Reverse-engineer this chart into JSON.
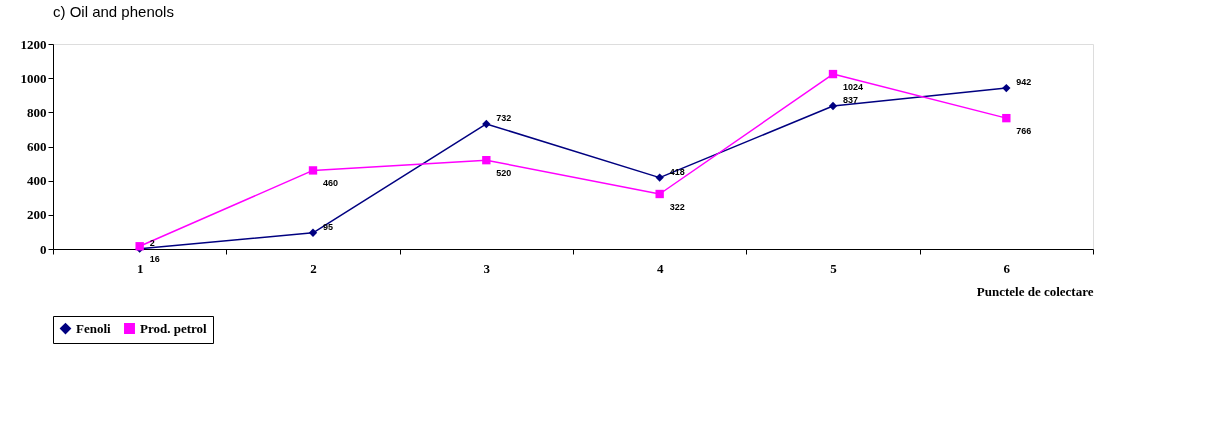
{
  "chart_data": {
    "type": "line",
    "title": "c) Oil and phenols",
    "xlabel": "Punctele de colectare",
    "categories": [
      "1",
      "2",
      "3",
      "4",
      "5",
      "6"
    ],
    "series": [
      {
        "name": "Fenoli",
        "color": "#000080",
        "marker": "diamond",
        "values": [
          2,
          95,
          732,
          418,
          837,
          942
        ]
      },
      {
        "name": "Prod. petrol",
        "color": "#ff00ff",
        "marker": "square",
        "values": [
          16,
          460,
          520,
          322,
          1024,
          766
        ]
      }
    ],
    "ylim": [
      0,
      1200
    ],
    "yticks": [
      0,
      200,
      400,
      600,
      800,
      1000,
      1200
    ],
    "grid": false,
    "legend": "bottom",
    "data_labels": true,
    "line_style": "solid"
  }
}
